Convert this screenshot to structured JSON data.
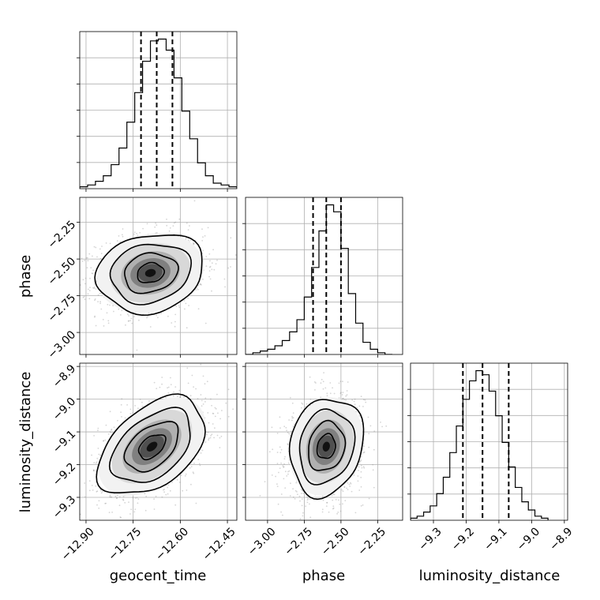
{
  "chart_data": {
    "type": "corner",
    "parameters": [
      "geocent_time",
      "phase",
      "luminosity_distance"
    ],
    "axes": {
      "geocent_time": {
        "range": [
          -12.92,
          -12.42
        ],
        "ticks": [
          -12.9,
          -12.75,
          -12.6,
          -12.45
        ],
        "tick_labels": [
          "−12.90",
          "−12.75",
          "−12.60",
          "−12.45"
        ]
      },
      "phase": {
        "range": [
          -3.15,
          -2.08
        ],
        "ticks": [
          -3.0,
          -2.75,
          -2.5,
          -2.25
        ],
        "tick_labels": [
          "−3.00",
          "−2.75",
          "−2.50",
          "−2.25"
        ]
      },
      "luminosity_distance": {
        "range": [
          -9.37,
          -8.89
        ],
        "ticks": [
          -9.3,
          -9.2,
          -9.1,
          -9.0,
          -8.9
        ],
        "tick_labels": [
          "−9.3",
          "−9.2",
          "−9.1",
          "−9.0",
          "−8.9"
        ]
      }
    },
    "diagonal": [
      {
        "parameter": "geocent_time",
        "bin_edges": [
          -12.92,
          -12.895,
          -12.87,
          -12.845,
          -12.82,
          -12.795,
          -12.77,
          -12.745,
          -12.72,
          -12.695,
          -12.67,
          -12.645,
          -12.62,
          -12.595,
          -12.57,
          -12.545,
          -12.52,
          -12.495,
          -12.47,
          -12.445,
          -12.42
        ],
        "counts": [
          1,
          2,
          4,
          7,
          13,
          22,
          36,
          52,
          69,
          80,
          81,
          75,
          60,
          42,
          27,
          14,
          7,
          3,
          2,
          1
        ],
        "quantiles": [
          -12.725,
          -12.675,
          -12.625
        ]
      },
      {
        "parameter": "phase",
        "bin_edges": [
          -3.15,
          -3.1,
          -3.05,
          -3.0,
          -2.95,
          -2.9,
          -2.85,
          -2.8,
          -2.75,
          -2.7,
          -2.65,
          -2.6,
          -2.55,
          -2.5,
          -2.45,
          -2.4,
          -2.35,
          -2.3,
          -2.25,
          -2.2,
          -2.15
        ],
        "counts": [
          0,
          1,
          2,
          3,
          5,
          8,
          13,
          20,
          33,
          50,
          71,
          86,
          82,
          61,
          35,
          18,
          7,
          3,
          1,
          0
        ],
        "quantiles": [
          -2.69,
          -2.6,
          -2.5
        ]
      },
      {
        "parameter": "luminosity_distance",
        "bin_edges": [
          -9.37,
          -9.35,
          -9.33,
          -9.31,
          -9.29,
          -9.27,
          -9.25,
          -9.23,
          -9.21,
          -9.19,
          -9.17,
          -9.15,
          -9.13,
          -9.11,
          -9.09,
          -9.07,
          -9.05,
          -9.03,
          -9.01,
          -8.99,
          -8.97,
          -8.95
        ],
        "counts": [
          1,
          2,
          4,
          7,
          13,
          21,
          33,
          46,
          59,
          68,
          73,
          71,
          63,
          51,
          38,
          26,
          16,
          9,
          5,
          2,
          1
        ],
        "quantiles": [
          -9.21,
          -9.15,
          -9.07
        ]
      }
    ],
    "pairs": [
      {
        "x": "geocent_time",
        "y": "phase",
        "center": [
          -12.695,
          -2.595
        ],
        "sigma": [
          0.085,
          0.135
        ],
        "rho": 0.15,
        "contour_levels": [
          0.5,
          1.0,
          1.5,
          2.0
        ]
      },
      {
        "x": "geocent_time",
        "y": "luminosity_distance",
        "center": [
          -12.69,
          -9.145
        ],
        "sigma": [
          0.085,
          0.075
        ],
        "rho": 0.45,
        "contour_levels": [
          0.5,
          1.0,
          1.5,
          2.0
        ]
      },
      {
        "x": "phase",
        "y": "luminosity_distance",
        "center": [
          -2.6,
          -9.145
        ],
        "sigma": [
          0.125,
          0.075
        ],
        "rho": 0.15,
        "contour_levels": [
          0.5,
          1.0,
          1.5,
          2.0
        ]
      }
    ],
    "grid": true,
    "legend": "none"
  }
}
